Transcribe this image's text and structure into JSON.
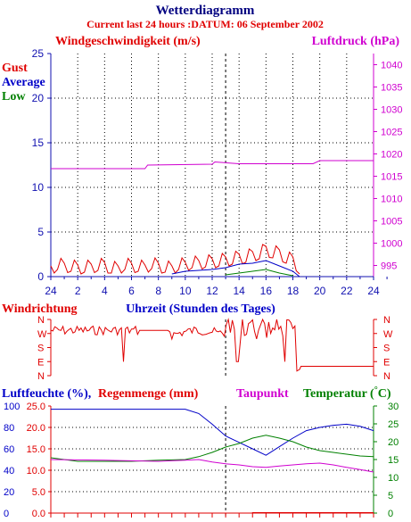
{
  "header": {
    "title": "Wetterdiagramm",
    "subtitle": "Current last 24 hours :DATUM: 06 September 2002"
  },
  "colors": {
    "red": "#e00000",
    "blue": "#0000c8",
    "green": "#008000",
    "magenta": "#d000d0",
    "navy": "#000080",
    "axis": "#1010b0"
  },
  "chart_data": [
    {
      "type": "line",
      "title": "",
      "left_label": "Windgeschwindigkeit (m/s)",
      "right_label": "Luftdruck (hPa)",
      "legend": [
        "Gust",
        "Average",
        "Low"
      ],
      "x_ticks": [
        "24",
        "2",
        "4",
        "6",
        "8",
        "10",
        "12",
        "14",
        "16",
        "18",
        "20",
        "22",
        "24"
      ],
      "x_axis_hours": "0..24 (midnight to midnight), current time ~13",
      "y_left_ticks": [
        "0",
        "5",
        "10",
        "15",
        "20",
        "25"
      ],
      "y_left_range": [
        0,
        25
      ],
      "y_right_ticks": [
        "995",
        "1000",
        "1005",
        "1010",
        "1015",
        "1020",
        "1025",
        "1030",
        "1035",
        "1040"
      ],
      "y_right_range": [
        992.5,
        1042.5
      ],
      "series": [
        {
          "name": "Gust",
          "color": "#e00000",
          "data": "noisy 0-2 m/s from 0h-18.5h, up to ~3.5 m/s around 15-17h",
          "points": [
            [
              0,
              1.2
            ],
            [
              0.5,
              0.8
            ],
            [
              1,
              1.5
            ],
            [
              1.5,
              0.6
            ],
            [
              2,
              1.3
            ],
            [
              2.5,
              0.5
            ],
            [
              3,
              1.4
            ],
            [
              3.5,
              0.7
            ],
            [
              4,
              1.6
            ],
            [
              4.5,
              0.4
            ],
            [
              5,
              1.2
            ],
            [
              5.5,
              0.8
            ],
            [
              6,
              1.5
            ],
            [
              6.5,
              0.6
            ],
            [
              7,
              1.3
            ],
            [
              7.5,
              0.9
            ],
            [
              8,
              1.5
            ],
            [
              8.5,
              0.5
            ],
            [
              9,
              1.2
            ],
            [
              9.5,
              0.8
            ],
            [
              10,
              1.6
            ],
            [
              10.5,
              1.0
            ],
            [
              11,
              1.8
            ],
            [
              11.5,
              1.1
            ],
            [
              12,
              2.0
            ],
            [
              12.5,
              1.2
            ],
            [
              13,
              2.2
            ],
            [
              13.5,
              1.4
            ],
            [
              14,
              2.5
            ],
            [
              14.5,
              1.6
            ],
            [
              15,
              2.8
            ],
            [
              15.5,
              2.0
            ],
            [
              16,
              3.4
            ],
            [
              16.5,
              2.1
            ],
            [
              17,
              3.0
            ],
            [
              17.5,
              1.5
            ],
            [
              18,
              2.2
            ],
            [
              18.5,
              0.3
            ]
          ]
        },
        {
          "name": "Average",
          "color": "#0000c8",
          "points": [
            [
              9,
              0.3
            ],
            [
              10,
              0.6
            ],
            [
              11,
              0.7
            ],
            [
              12,
              0.8
            ],
            [
              13,
              1.0
            ],
            [
              14,
              1.4
            ],
            [
              15,
              1.5
            ],
            [
              16,
              1.8
            ],
            [
              17,
              1.2
            ],
            [
              18,
              0.6
            ],
            [
              18.5,
              0
            ]
          ]
        },
        {
          "name": "Low",
          "color": "#008000",
          "points": [
            [
              13,
              0.2
            ],
            [
              14,
              0.4
            ],
            [
              15,
              0.6
            ],
            [
              16,
              0.8
            ],
            [
              17,
              0.4
            ],
            [
              18,
              0.1
            ]
          ]
        },
        {
          "name": "Luftdruck",
          "color": "#d000d0",
          "axis": "right",
          "points": [
            [
              0,
              1016.7
            ],
            [
              7,
              1016.7
            ],
            [
              7.2,
              1017.5
            ],
            [
              12,
              1017.7
            ],
            [
              12.2,
              1018.2
            ],
            [
              14,
              1017.8
            ],
            [
              19.5,
              1017.8
            ],
            [
              20,
              1018.5
            ],
            [
              24,
              1018.5
            ],
            [
              24,
              1020
            ]
          ]
        }
      ]
    },
    {
      "type": "line",
      "title": "",
      "left_label": "Windrichtung",
      "center_label": "Uhrzeit (Stunden des Tages)",
      "y_ticks": [
        "N",
        "W",
        "S",
        "E",
        "N"
      ],
      "y_range": [
        0,
        360
      ],
      "series": [
        {
          "name": "Windrichtung",
          "color": "#e00000",
          "data": "direction in degrees, noisy between W and S"
        }
      ]
    },
    {
      "type": "line",
      "title": "",
      "left_label": "Luftfeuchte (%),",
      "left_label2": "Regenmenge (mm)",
      "right_label": "Taupunkt",
      "right_label2": "Temperatur (",
      "right_label2_unit": "C)",
      "y_left_ticks": [
        "0",
        "20",
        "40",
        "60",
        "80",
        "100"
      ],
      "y_left_range": [
        0,
        100
      ],
      "y_mid_ticks": [
        "0.0",
        "5.0",
        "10.0",
        "15.0",
        "20.0",
        "25.0"
      ],
      "y_mid_range": [
        0,
        25
      ],
      "y_right_ticks": [
        "0",
        "5",
        "10",
        "15",
        "20",
        "25",
        "30"
      ],
      "y_right_range": [
        0,
        30
      ],
      "series": [
        {
          "name": "Luftfeuchte",
          "color": "#0000c8",
          "points": [
            [
              0,
              97
            ],
            [
              10,
              97
            ],
            [
              11,
              93
            ],
            [
              12,
              83
            ],
            [
              13,
              72
            ],
            [
              14,
              66
            ],
            [
              15,
              60
            ],
            [
              16,
              54
            ],
            [
              17,
              62
            ],
            [
              18,
              70
            ],
            [
              19,
              77
            ],
            [
              20,
              80
            ],
            [
              21,
              82
            ],
            [
              22,
              83
            ],
            [
              23,
              81
            ],
            [
              24,
              77
            ]
          ]
        },
        {
          "name": "Temperatur",
          "color": "#008000",
          "points": [
            [
              0,
              15.5
            ],
            [
              2,
              14.5
            ],
            [
              4,
              14.5
            ],
            [
              6,
              14.5
            ],
            [
              8,
              14.8
            ],
            [
              10,
              15.0
            ],
            [
              11,
              15.8
            ],
            [
              12,
              17.0
            ],
            [
              13,
              18.5
            ],
            [
              14,
              19.5
            ],
            [
              15,
              21
            ],
            [
              16,
              21.8
            ],
            [
              17,
              21.0
            ],
            [
              18,
              20.0
            ],
            [
              19,
              18.5
            ],
            [
              20,
              17.5
            ],
            [
              21,
              17.0
            ],
            [
              22,
              16.5
            ],
            [
              23,
              16
            ],
            [
              24,
              15.8
            ]
          ]
        },
        {
          "name": "Taupunkt",
          "color": "#d000d0",
          "points": [
            [
              0,
              15
            ],
            [
              4,
              14.8
            ],
            [
              8,
              14.5
            ],
            [
              10,
              14.8
            ],
            [
              11,
              15.0
            ],
            [
              12,
              14.3
            ],
            [
              13,
              13.8
            ],
            [
              14,
              13.5
            ],
            [
              15,
              13.0
            ],
            [
              16,
              12.8
            ],
            [
              17,
              13.2
            ],
            [
              18,
              13.5
            ],
            [
              19,
              13.8
            ],
            [
              20,
              14.0
            ],
            [
              21,
              13.5
            ],
            [
              22,
              12.8
            ],
            [
              23,
              12.2
            ],
            [
              24,
              11.5
            ]
          ]
        },
        {
          "name": "Regenmenge",
          "color": "#e00000",
          "points": [
            [
              0,
              0
            ],
            [
              15,
              0
            ],
            [
              15,
              0.1
            ],
            [
              24,
              0.1
            ]
          ]
        }
      ]
    }
  ]
}
